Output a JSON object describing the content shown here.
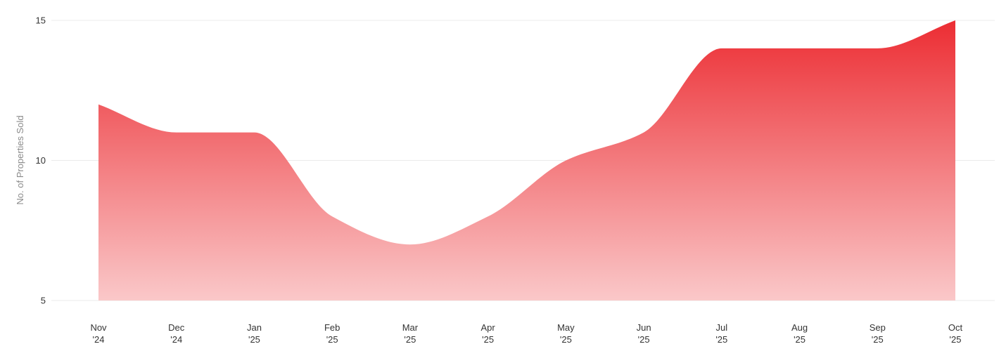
{
  "chart_data": {
    "type": "area",
    "ylabel": "No. of Properties Sold",
    "y_ticks": [
      "5",
      "10",
      "15"
    ],
    "ylim": [
      5,
      15
    ],
    "grid": true,
    "legend": "none",
    "categories": [
      [
        "Nov",
        "'24"
      ],
      [
        "Dec",
        "'24"
      ],
      [
        "Jan",
        "'25"
      ],
      [
        "Feb",
        "'25"
      ],
      [
        "Mar",
        "'25"
      ],
      [
        "Apr",
        "'25"
      ],
      [
        "May",
        "'25"
      ],
      [
        "Jun",
        "'25"
      ],
      [
        "Jul",
        "'25"
      ],
      [
        "Aug",
        "'25"
      ],
      [
        "Sep",
        "'25"
      ],
      [
        "Oct",
        "'25"
      ]
    ],
    "series": [
      {
        "values": [
          12,
          11,
          11,
          8,
          7,
          8,
          10,
          11,
          14,
          14,
          14,
          15
        ]
      }
    ],
    "colors": {
      "area_top": "#ec2d33",
      "area_bottom": "#fac8c9"
    }
  }
}
